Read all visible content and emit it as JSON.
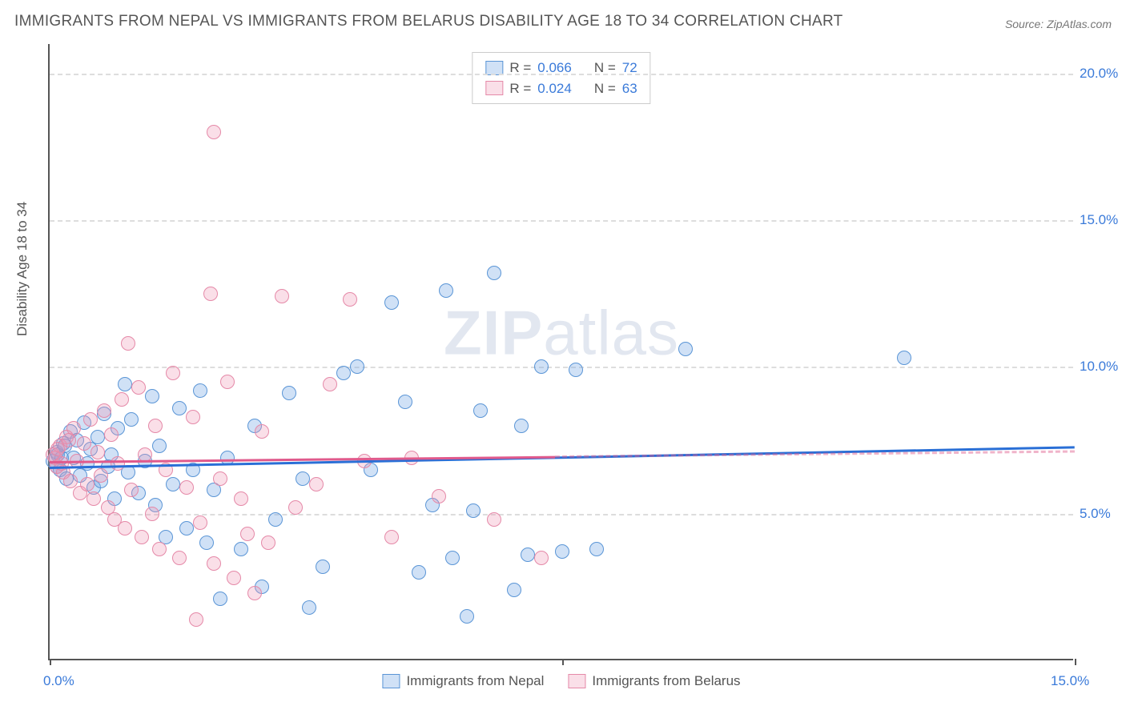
{
  "title": "IMMIGRANTS FROM NEPAL VS IMMIGRANTS FROM BELARUS DISABILITY AGE 18 TO 34 CORRELATION CHART",
  "source": "Source: ZipAtlas.com",
  "ylabel": "Disability Age 18 to 34",
  "watermark_zip": "ZIP",
  "watermark_atlas": "atlas",
  "chart": {
    "type": "scatter",
    "xlim": [
      0,
      15
    ],
    "ylim": [
      0,
      21
    ],
    "x_ticks": [
      0,
      7.5,
      15
    ],
    "x_tick_labels": [
      "0.0%",
      "",
      "15.0%"
    ],
    "y_ticks": [
      5,
      10,
      15,
      20
    ],
    "y_tick_labels": [
      "5.0%",
      "10.0%",
      "15.0%",
      "20.0%"
    ],
    "grid_color": "#dddddd",
    "axis_color": "#555555",
    "background_color": "#ffffff",
    "point_radius": 9,
    "series": [
      {
        "name": "Immigrants from Nepal",
        "fill": "rgba(120,170,230,0.35)",
        "stroke": "#5a95d6",
        "r_value": "0.066",
        "n_value": "72",
        "trend": {
          "x1": 0,
          "y1": 6.6,
          "x2": 15,
          "y2": 7.3,
          "x_solid_end": 15,
          "color": "#2a6fd6"
        },
        "points": [
          [
            0.05,
            6.8
          ],
          [
            0.1,
            7.1
          ],
          [
            0.15,
            6.5
          ],
          [
            0.2,
            7.4
          ],
          [
            0.25,
            6.2
          ],
          [
            0.3,
            7.8
          ],
          [
            0.35,
            6.9
          ],
          [
            0.4,
            7.5
          ],
          [
            0.45,
            6.3
          ],
          [
            0.5,
            8.1
          ],
          [
            0.55,
            6.7
          ],
          [
            0.6,
            7.2
          ],
          [
            0.65,
            5.9
          ],
          [
            0.7,
            7.6
          ],
          [
            0.75,
            6.1
          ],
          [
            0.8,
            8.4
          ],
          [
            0.85,
            6.6
          ],
          [
            0.9,
            7.0
          ],
          [
            0.95,
            5.5
          ],
          [
            1.0,
            7.9
          ],
          [
            1.1,
            9.4
          ],
          [
            1.15,
            6.4
          ],
          [
            1.2,
            8.2
          ],
          [
            1.3,
            5.7
          ],
          [
            1.4,
            6.8
          ],
          [
            1.5,
            9.0
          ],
          [
            1.55,
            5.3
          ],
          [
            1.6,
            7.3
          ],
          [
            1.7,
            4.2
          ],
          [
            1.8,
            6.0
          ],
          [
            1.9,
            8.6
          ],
          [
            2.0,
            4.5
          ],
          [
            2.1,
            6.5
          ],
          [
            2.2,
            9.2
          ],
          [
            2.3,
            4.0
          ],
          [
            2.4,
            5.8
          ],
          [
            2.5,
            2.1
          ],
          [
            2.6,
            6.9
          ],
          [
            2.8,
            3.8
          ],
          [
            3.0,
            8.0
          ],
          [
            3.1,
            2.5
          ],
          [
            3.3,
            4.8
          ],
          [
            3.5,
            9.1
          ],
          [
            3.7,
            6.2
          ],
          [
            3.8,
            1.8
          ],
          [
            4.0,
            3.2
          ],
          [
            4.3,
            9.8
          ],
          [
            4.5,
            10.0
          ],
          [
            4.7,
            6.5
          ],
          [
            5.0,
            12.2
          ],
          [
            5.2,
            8.8
          ],
          [
            5.4,
            3.0
          ],
          [
            5.6,
            5.3
          ],
          [
            5.8,
            12.6
          ],
          [
            5.9,
            3.5
          ],
          [
            6.1,
            1.5
          ],
          [
            6.2,
            5.1
          ],
          [
            6.3,
            8.5
          ],
          [
            6.5,
            13.2
          ],
          [
            6.8,
            2.4
          ],
          [
            6.9,
            8.0
          ],
          [
            7.0,
            3.6
          ],
          [
            7.2,
            10.0
          ],
          [
            7.5,
            3.7
          ],
          [
            7.7,
            9.9
          ],
          [
            8.0,
            3.8
          ],
          [
            9.3,
            10.6
          ],
          [
            12.5,
            10.3
          ],
          [
            0.1,
            6.6
          ],
          [
            0.12,
            7.0
          ],
          [
            0.18,
            6.9
          ],
          [
            0.22,
            7.3
          ]
        ]
      },
      {
        "name": "Immigrants from Belarus",
        "fill": "rgba(240,150,180,0.30)",
        "stroke": "#e589a8",
        "r_value": "0.024",
        "n_value": "63",
        "trend": {
          "x1": 0,
          "y1": 6.8,
          "x2": 15,
          "y2": 7.15,
          "x_solid_end": 7.4,
          "color": "#e05a8c"
        },
        "points": [
          [
            0.05,
            7.0
          ],
          [
            0.1,
            6.6
          ],
          [
            0.15,
            7.3
          ],
          [
            0.2,
            6.4
          ],
          [
            0.25,
            7.6
          ],
          [
            0.3,
            6.1
          ],
          [
            0.35,
            7.9
          ],
          [
            0.4,
            6.8
          ],
          [
            0.45,
            5.7
          ],
          [
            0.5,
            7.4
          ],
          [
            0.55,
            6.0
          ],
          [
            0.6,
            8.2
          ],
          [
            0.65,
            5.5
          ],
          [
            0.7,
            7.1
          ],
          [
            0.75,
            6.3
          ],
          [
            0.8,
            8.5
          ],
          [
            0.85,
            5.2
          ],
          [
            0.9,
            7.7
          ],
          [
            0.95,
            4.8
          ],
          [
            1.0,
            6.7
          ],
          [
            1.05,
            8.9
          ],
          [
            1.1,
            4.5
          ],
          [
            1.15,
            10.8
          ],
          [
            1.2,
            5.8
          ],
          [
            1.3,
            9.3
          ],
          [
            1.35,
            4.2
          ],
          [
            1.4,
            7.0
          ],
          [
            1.5,
            5.0
          ],
          [
            1.55,
            8.0
          ],
          [
            1.6,
            3.8
          ],
          [
            1.7,
            6.5
          ],
          [
            1.8,
            9.8
          ],
          [
            1.9,
            3.5
          ],
          [
            2.0,
            5.9
          ],
          [
            2.1,
            8.3
          ],
          [
            2.15,
            1.4
          ],
          [
            2.2,
            4.7
          ],
          [
            2.35,
            12.5
          ],
          [
            2.4,
            3.3
          ],
          [
            2.5,
            6.2
          ],
          [
            2.6,
            9.5
          ],
          [
            2.7,
            2.8
          ],
          [
            2.8,
            5.5
          ],
          [
            2.4,
            18.0
          ],
          [
            2.9,
            4.3
          ],
          [
            3.0,
            2.3
          ],
          [
            3.1,
            7.8
          ],
          [
            3.2,
            4.0
          ],
          [
            3.4,
            12.4
          ],
          [
            3.6,
            5.2
          ],
          [
            3.9,
            6.0
          ],
          [
            4.1,
            9.4
          ],
          [
            4.4,
            12.3
          ],
          [
            4.6,
            6.8
          ],
          [
            5.0,
            4.2
          ],
          [
            5.3,
            6.9
          ],
          [
            5.7,
            5.6
          ],
          [
            6.5,
            4.8
          ],
          [
            7.2,
            3.5
          ],
          [
            0.08,
            6.9
          ],
          [
            0.12,
            7.2
          ],
          [
            0.18,
            6.7
          ],
          [
            0.28,
            7.5
          ]
        ]
      }
    ]
  },
  "legend_top_label_r": "R =",
  "legend_top_label_n": "N ="
}
